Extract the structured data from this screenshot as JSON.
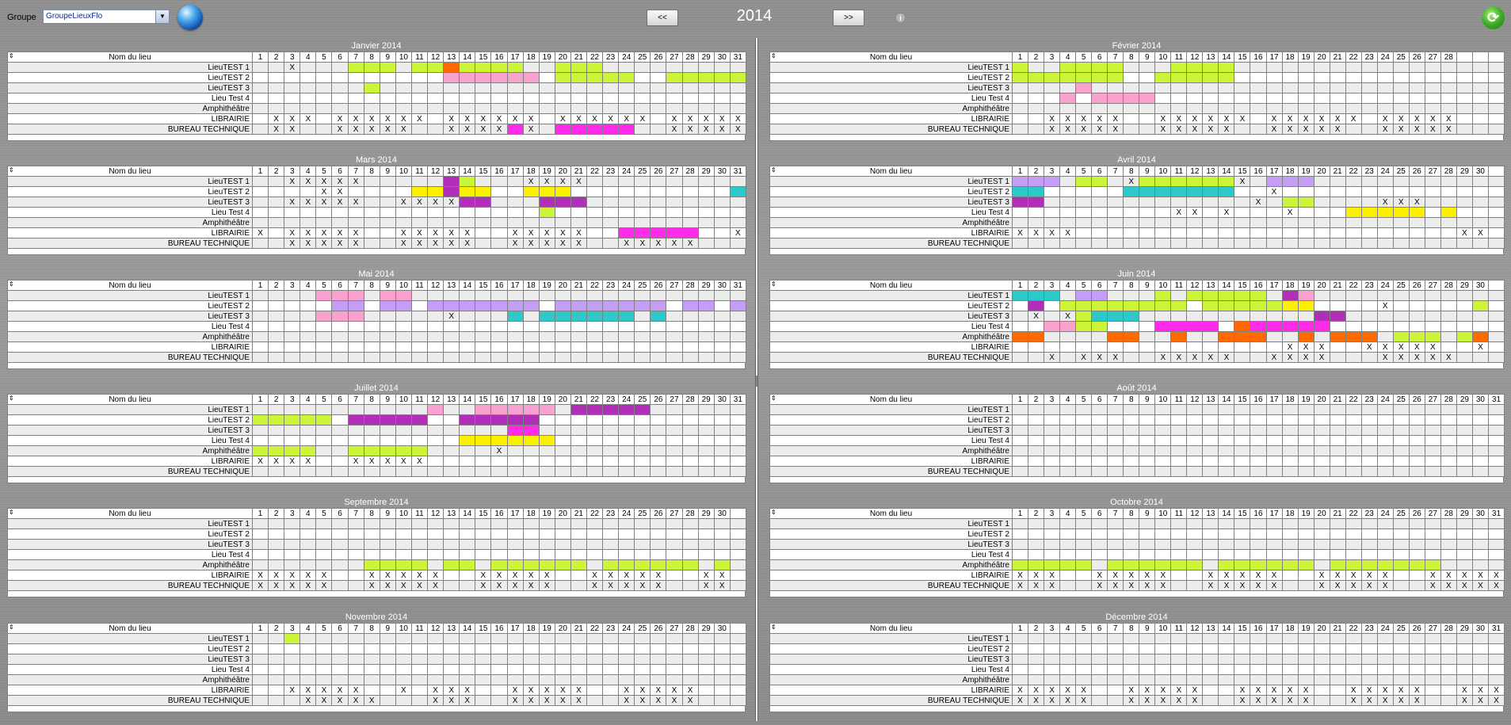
{
  "app": {
    "group_label": "Groupe",
    "group_value": "GroupeLieuxFlo",
    "prev_label": "<<",
    "next_label": ">>",
    "year": "2014",
    "info_label": "i"
  },
  "colors": {
    "lime": "#ccf53a",
    "orange": "#fe6a00",
    "pink": "#f9a2cf",
    "magenta": "#ff2be8",
    "purple": "#b12fb8",
    "lav": "#c49ef5",
    "yellow": "#fbf000",
    "cyan": "#2dc8c8"
  },
  "header_name": "Nom du lieu",
  "rows": [
    "LieuTEST 1",
    "LieuTEST 2",
    "LieuTEST 3",
    "Lieu Test 4",
    "Amphithéâtre",
    "LIBRAIRIE",
    "BUREAU TECHNIQUE"
  ],
  "months": [
    {
      "title": "Janvier 2014",
      "days": 31,
      "marks": [
        {
          "X": [
            3
          ],
          "lime": [
            [
              7,
              9
            ],
            [
              11,
              12
            ],
            [
              14,
              17
            ],
            [
              20,
              22
            ]
          ],
          "orange": [
            [
              13,
              13
            ]
          ]
        },
        {
          "pink": [
            [
              13,
              18
            ]
          ],
          "lime": [
            [
              20,
              24
            ],
            [
              27,
              31
            ]
          ]
        },
        {
          "lime": [
            [
              8,
              8
            ]
          ]
        },
        {},
        {},
        {
          "X": [
            2,
            3,
            4,
            6,
            7,
            8,
            9,
            10,
            11,
            13,
            14,
            15,
            16,
            17,
            18,
            20,
            21,
            22,
            23,
            24,
            25,
            27,
            28,
            29,
            30,
            31
          ]
        },
        {
          "X": [
            2,
            3,
            6,
            7,
            8,
            9,
            10,
            13,
            14,
            15,
            16,
            18,
            27,
            28,
            29,
            30,
            31
          ],
          "magenta": [
            [
              17,
              17
            ],
            [
              20,
              24
            ]
          ]
        }
      ]
    },
    {
      "title": "Février 2014",
      "days": 28,
      "marks": [
        {
          "lime": [
            [
              1,
              1
            ],
            [
              4,
              7
            ],
            [
              11,
              14
            ]
          ]
        },
        {
          "lime": [
            [
              1,
              7
            ],
            [
              10,
              14
            ]
          ]
        },
        {
          "pink": [
            [
              5,
              5
            ]
          ]
        },
        {
          "pink": [
            [
              4,
              4
            ],
            [
              6,
              9
            ]
          ]
        },
        {},
        {
          "X": [
            3,
            4,
            5,
            6,
            7,
            10,
            11,
            12,
            13,
            14,
            15,
            17,
            18,
            19,
            20,
            21,
            22,
            24,
            25,
            26,
            27,
            28
          ]
        },
        {
          "X": [
            3,
            4,
            5,
            6,
            7,
            10,
            11,
            12,
            13,
            14,
            17,
            18,
            19,
            20,
            21,
            24,
            25,
            26,
            27,
            28
          ]
        }
      ]
    },
    {
      "title": "Mars 2014",
      "days": 31,
      "marks": [
        {
          "X": [
            3,
            4,
            5,
            6,
            7,
            18,
            19,
            20,
            21
          ],
          "purple": [
            [
              13,
              13
            ]
          ],
          "lime": [
            [
              14,
              14
            ]
          ]
        },
        {
          "X": [
            5,
            6
          ],
          "yellow": [
            [
              11,
              12
            ],
            [
              14,
              15
            ],
            [
              18,
              20
            ]
          ],
          "purple": [
            [
              13,
              13
            ]
          ],
          "cyan": [
            [
              31,
              31
            ]
          ]
        },
        {
          "X": [
            3,
            4,
            5,
            6,
            7,
            10,
            11,
            12,
            13
          ],
          "purple": [
            [
              14,
              15
            ],
            [
              19,
              21
            ]
          ]
        },
        {
          "lime": [
            [
              19,
              19
            ]
          ]
        },
        {},
        {
          "X": [
            1,
            3,
            4,
            5,
            6,
            7,
            10,
            11,
            12,
            13,
            14,
            17,
            18,
            19,
            20,
            21,
            31
          ],
          "magenta": [
            [
              24,
              28
            ]
          ]
        },
        {
          "X": [
            3,
            4,
            5,
            6,
            7,
            10,
            11,
            12,
            13,
            14,
            17,
            18,
            19,
            20,
            21,
            24,
            25,
            26,
            27,
            28
          ]
        }
      ]
    },
    {
      "title": "Avril 2014",
      "days": 30,
      "marks": [
        {
          "lav": [
            [
              1,
              3
            ],
            [
              17,
              19
            ]
          ],
          "lime": [
            [
              5,
              6
            ],
            [
              9,
              14
            ]
          ],
          "X": [
            8,
            15
          ]
        },
        {
          "cyan": [
            [
              1,
              2
            ],
            [
              8,
              14
            ]
          ],
          "X": [
            17
          ]
        },
        {
          "purple": [
            [
              1,
              2
            ]
          ],
          "lime": [
            [
              18,
              19
            ]
          ],
          "X": [
            16,
            24,
            25,
            26
          ]
        },
        {
          "X": [
            11,
            12,
            14,
            18
          ],
          "yellow": [
            [
              22,
              26
            ],
            [
              28,
              28
            ]
          ]
        },
        {},
        {
          "X": [
            1,
            2,
            3,
            4,
            29,
            30
          ]
        },
        {}
      ]
    },
    {
      "title": "Mai 2014",
      "days": 31,
      "marks": [
        {
          "pink": [
            [
              5,
              7
            ],
            [
              9,
              10
            ]
          ]
        },
        {
          "lav": [
            [
              6,
              7
            ],
            [
              9,
              10
            ],
            [
              12,
              18
            ],
            [
              20,
              26
            ],
            [
              28,
              29
            ],
            [
              31,
              31
            ]
          ]
        },
        {
          "pink": [
            [
              5,
              7
            ]
          ],
          "X": [
            13
          ],
          "cyan": [
            [
              17,
              17
            ],
            [
              19,
              24
            ],
            [
              26,
              26
            ]
          ]
        },
        {},
        {},
        {},
        {}
      ]
    },
    {
      "title": "Juin 2014",
      "days": 30,
      "marks": [
        {
          "cyan": [
            [
              1,
              3
            ]
          ],
          "lav": [
            [
              5,
              6
            ]
          ],
          "lime": [
            [
              10,
              10
            ],
            [
              12,
              16
            ]
          ],
          "purple": [
            [
              18,
              18
            ]
          ],
          "pink": [
            [
              19,
              19
            ]
          ]
        },
        {
          "purple": [
            [
              2,
              2
            ]
          ],
          "lime": [
            [
              4,
              11
            ],
            [
              13,
              17
            ],
            [
              30,
              30
            ]
          ],
          "yellow": [
            [
              18,
              19
            ]
          ],
          "X": [
            24
          ]
        },
        {
          "X": [
            2,
            4
          ],
          "lime": [
            [
              5,
              5
            ]
          ],
          "cyan": [
            [
              6,
              8
            ]
          ],
          "purple": [
            [
              20,
              21
            ]
          ]
        },
        {
          "pink": [
            [
              3,
              4
            ]
          ],
          "lime": [
            [
              5,
              6
            ]
          ],
          "magenta": [
            [
              10,
              13
            ],
            [
              16,
              20
            ]
          ],
          "orange": [
            [
              15,
              15
            ]
          ]
        },
        {
          "orange": [
            [
              1,
              2
            ],
            [
              7,
              8
            ],
            [
              11,
              11
            ],
            [
              14,
              16
            ],
            [
              19,
              19
            ],
            [
              21,
              23
            ],
            [
              30,
              30
            ]
          ],
          "lime": [
            [
              25,
              27
            ],
            [
              29,
              29
            ]
          ]
        },
        {
          "X": [
            18,
            19,
            20,
            23,
            24,
            25,
            26,
            27,
            30
          ]
        },
        {
          "X": [
            3,
            5,
            6,
            7,
            10,
            11,
            12,
            13,
            14,
            17,
            18,
            19,
            20,
            24,
            25,
            26,
            27,
            28
          ]
        }
      ]
    },
    {
      "title": "Juillet 2014",
      "days": 31,
      "marks": [
        {
          "pink": [
            [
              12,
              12
            ],
            [
              15,
              19
            ]
          ],
          "purple": [
            [
              21,
              25
            ]
          ]
        },
        {
          "lime": [
            [
              1,
              5
            ]
          ],
          "purple": [
            [
              7,
              11
            ],
            [
              14,
              18
            ]
          ]
        },
        {
          "magenta": [
            [
              17,
              18
            ]
          ]
        },
        {
          "yellow": [
            [
              14,
              19
            ]
          ]
        },
        {
          "lime": [
            [
              1,
              4
            ],
            [
              7,
              11
            ]
          ],
          "X": [
            16
          ]
        },
        {
          "X": [
            1,
            2,
            3,
            4,
            7,
            8,
            9,
            10,
            11
          ]
        },
        {}
      ]
    },
    {
      "title": "Août 2014",
      "days": 31,
      "marks": [
        {},
        {},
        {},
        {},
        {},
        {},
        {}
      ]
    },
    {
      "title": "Septembre 2014",
      "days": 30,
      "marks": [
        {},
        {},
        {},
        {},
        {
          "lime": [
            [
              8,
              11
            ],
            [
              13,
              14
            ],
            [
              16,
              21
            ],
            [
              23,
              28
            ],
            [
              30,
              30
            ]
          ]
        },
        {
          "X": [
            1,
            2,
            3,
            4,
            5,
            8,
            9,
            10,
            11,
            12,
            15,
            16,
            17,
            18,
            19,
            22,
            23,
            24,
            25,
            26,
            29,
            30
          ]
        },
        {
          "X": [
            1,
            2,
            3,
            4,
            5,
            8,
            9,
            10,
            11,
            12,
            15,
            16,
            17,
            18,
            19,
            22,
            23,
            24,
            25,
            26,
            29,
            30
          ]
        }
      ]
    },
    {
      "title": "Octobre 2014",
      "days": 31,
      "marks": [
        {},
        {},
        {},
        {},
        {
          "lime": [
            [
              1,
              5
            ],
            [
              7,
              12
            ],
            [
              14,
              19
            ],
            [
              21,
              27
            ]
          ]
        },
        {
          "X": [
            1,
            2,
            3,
            6,
            7,
            8,
            9,
            10,
            13,
            14,
            15,
            16,
            17,
            20,
            21,
            22,
            23,
            24,
            27,
            28,
            29,
            30,
            31
          ]
        },
        {
          "X": [
            1,
            2,
            3,
            6,
            7,
            8,
            9,
            10,
            13,
            14,
            15,
            16,
            17,
            20,
            21,
            22,
            23,
            24,
            27,
            28,
            29,
            30,
            31
          ]
        }
      ]
    },
    {
      "title": "Novembre 2014",
      "days": 30,
      "marks": [
        {
          "lime": [
            [
              3,
              3
            ]
          ]
        },
        {},
        {},
        {},
        {},
        {
          "X": [
            3,
            4,
            5,
            6,
            7,
            10,
            12,
            13,
            14,
            17,
            18,
            19,
            20,
            21,
            24,
            25,
            26,
            27,
            28
          ]
        },
        {
          "X": [
            4,
            5,
            6,
            7,
            8,
            12,
            13,
            14,
            17,
            18,
            19,
            20,
            21,
            24,
            25,
            26,
            27,
            28
          ]
        }
      ]
    },
    {
      "title": "Décembre 2014",
      "days": 31,
      "marks": [
        {},
        {},
        {},
        {},
        {},
        {
          "X": [
            1,
            2,
            3,
            4,
            5,
            8,
            9,
            10,
            11,
            12,
            15,
            16,
            17,
            18,
            19,
            22,
            23,
            24,
            25,
            26,
            29,
            30,
            31
          ]
        },
        {
          "X": [
            1,
            2,
            3,
            4,
            5,
            8,
            9,
            10,
            11,
            12,
            15,
            16,
            17,
            18,
            19,
            22,
            23,
            24,
            25,
            26,
            29,
            30,
            31
          ]
        }
      ]
    }
  ]
}
